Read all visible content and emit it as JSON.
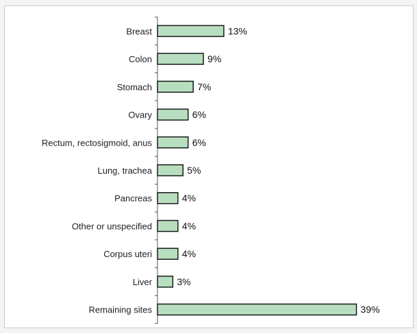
{
  "chart_data": {
    "type": "bar",
    "orientation": "horizontal",
    "categories": [
      "Breast",
      "Colon",
      "Stomach",
      "Ovary",
      "Rectum, rectosigmoid, anus",
      "Lung, trachea",
      "Pancreas",
      "Other or unspecified",
      "Corpus uteri",
      "Liver",
      "Remaining sites"
    ],
    "values": [
      13,
      9,
      7,
      6,
      6,
      5,
      4,
      4,
      4,
      3,
      39
    ],
    "value_labels": [
      "13%",
      "9%",
      "7%",
      "6%",
      "6%",
      "5%",
      "4%",
      "4%",
      "4%",
      "3%",
      "39%"
    ],
    "unit": "%",
    "xlim": [
      0,
      50
    ],
    "title": "",
    "xlabel": "",
    "ylabel": "",
    "grid": false,
    "bar_color": "#b7dfbf",
    "bar_outline_color": "#1a1a1a"
  }
}
